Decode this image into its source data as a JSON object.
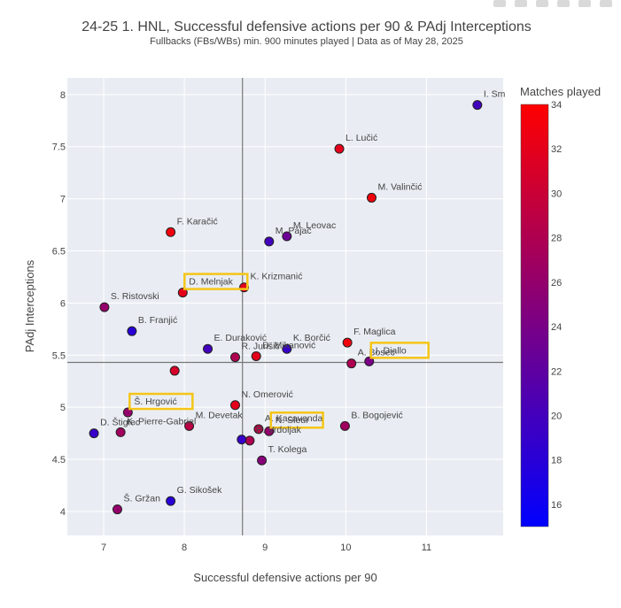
{
  "chart_data": {
    "type": "scatter",
    "title": "24-25 1. HNL, Successful defensive actions per 90 & PAdj Interceptions",
    "subtitle": "Fullbacks (FBs/WBs) min. 900 minutes played | Data as of May 28, 2025",
    "xlabel": "Successful defensive actions per 90",
    "ylabel": "PAdj Interceptions",
    "xlim": [
      6.55,
      11.95
    ],
    "ylim": [
      3.77,
      8.16
    ],
    "xticks": [
      7,
      8,
      9,
      10,
      11
    ],
    "yticks": [
      4,
      4.5,
      5,
      5.5,
      6,
      6.5,
      7,
      7.5,
      8
    ],
    "ytick_labels": [
      "4",
      "4.5",
      "5",
      "5.5",
      "6",
      "6.5",
      "7",
      "7.5",
      "8"
    ],
    "reference_lines": {
      "x": 8.72,
      "y": 5.43
    },
    "colorbar": {
      "title": "Matches played",
      "min": 15,
      "max": 34,
      "ticks": [
        16,
        18,
        20,
        22,
        24,
        26,
        28,
        30,
        32,
        34
      ],
      "low_color": "#0000ff",
      "high_color": "#ff0000"
    },
    "highlight_color": "#f5c518",
    "points": [
      {
        "name": "I. Sm",
        "x": 11.63,
        "y": 7.9,
        "matches": 20
      },
      {
        "name": "L. Lučić",
        "x": 9.92,
        "y": 7.48,
        "matches": 32
      },
      {
        "name": "M. Valinčić",
        "x": 10.32,
        "y": 7.01,
        "matches": 33
      },
      {
        "name": "F. Karačić",
        "x": 7.83,
        "y": 6.68,
        "matches": 33
      },
      {
        "name": "M. Leovac",
        "x": 9.27,
        "y": 6.64,
        "matches": 23
      },
      {
        "name": "M. Pajač",
        "x": 9.05,
        "y": 6.59,
        "matches": 20
      },
      {
        "name": "K. Krizmanić",
        "x": 8.74,
        "y": 6.15,
        "matches": 32
      },
      {
        "name": "D. Melnjak",
        "x": 7.98,
        "y": 6.1,
        "matches": 32,
        "highlight": true
      },
      {
        "name": "S. Ristovski",
        "x": 7.01,
        "y": 5.96,
        "matches": 26
      },
      {
        "name": "B. Franjić",
        "x": 7.35,
        "y": 5.73,
        "matches": 18
      },
      {
        "name": "F. Maglica",
        "x": 10.02,
        "y": 5.62,
        "matches": 33
      },
      {
        "name": "E. Duraković",
        "x": 8.29,
        "y": 5.56,
        "matches": 20
      },
      {
        "name": "K. Borčić",
        "x": 9.27,
        "y": 5.56,
        "matches": 19
      },
      {
        "name": "D. Mikanović",
        "x": 8.89,
        "y": 5.49,
        "matches": 32
      },
      {
        "name": "R. Jurišić",
        "x": 8.63,
        "y": 5.48,
        "matches": 28
      },
      {
        "name": "A. Bosec",
        "x": 10.07,
        "y": 5.42,
        "matches": 28
      },
      {
        "name": "I. Diallo",
        "x": 10.29,
        "y": 5.44,
        "matches": 24,
        "highlight": true
      },
      {
        "name": "",
        "x": 7.88,
        "y": 5.35,
        "matches": 31
      },
      {
        "name": "N. Omerović",
        "x": 8.63,
        "y": 5.02,
        "matches": 32
      },
      {
        "name": "Š. Hrgović",
        "x": 7.3,
        "y": 4.95,
        "matches": 26,
        "highlight": true
      },
      {
        "name": "M. Devetak",
        "x": 8.06,
        "y": 4.82,
        "matches": 29
      },
      {
        "name": "B. Bogojević",
        "x": 9.99,
        "y": 4.82,
        "matches": 27
      },
      {
        "name": "A. Kacavenda",
        "x": 8.92,
        "y": 4.79,
        "matches": 29
      },
      {
        "name": "N. Sleur",
        "x": 9.05,
        "y": 4.77,
        "matches": 26,
        "highlight": true
      },
      {
        "name": "R. Vrdoljak",
        "x": 8.81,
        "y": 4.68,
        "matches": 28
      },
      {
        "name": "D. Štiglec",
        "x": 6.88,
        "y": 4.75,
        "matches": 19
      },
      {
        "name": "K. Pierre-Gabriel",
        "x": 7.21,
        "y": 4.76,
        "matches": 27
      },
      {
        "name": "",
        "x": 8.71,
        "y": 4.69,
        "matches": 19
      },
      {
        "name": "T. Kolega",
        "x": 8.96,
        "y": 4.49,
        "matches": 25
      },
      {
        "name": "G. Sikošek",
        "x": 7.83,
        "y": 4.1,
        "matches": 18
      },
      {
        "name": "Š. Gržan",
        "x": 7.17,
        "y": 4.02,
        "matches": 26
      }
    ]
  }
}
